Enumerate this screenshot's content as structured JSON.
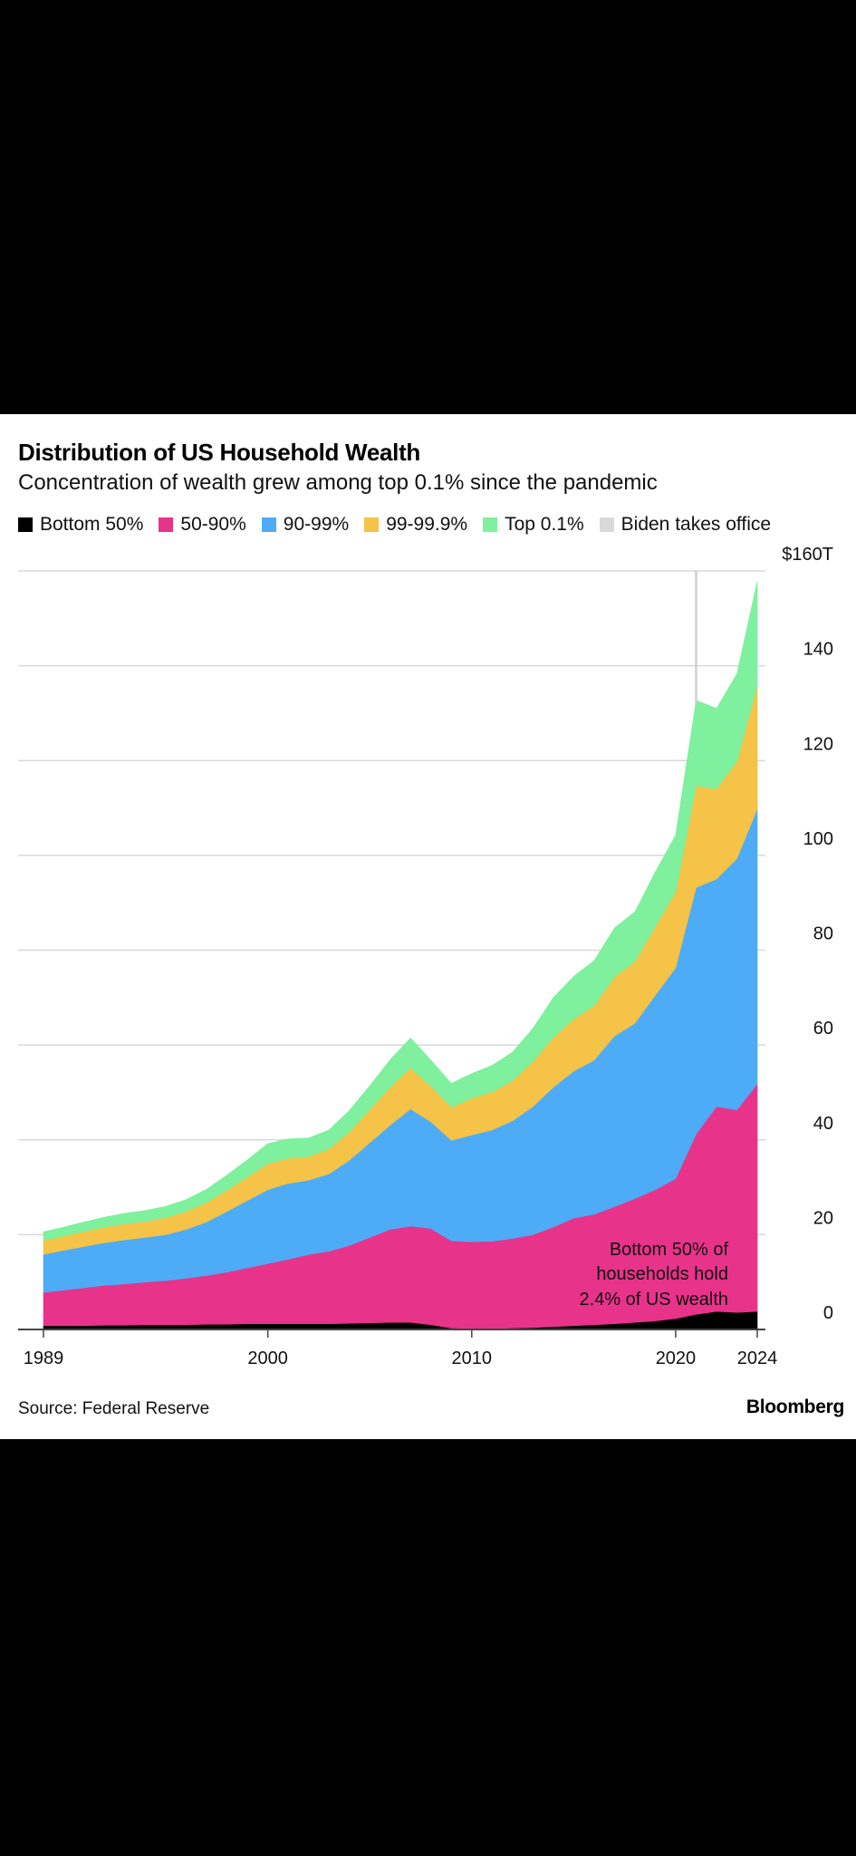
{
  "chart_data": {
    "type": "area",
    "title": "Distribution of US Household Wealth",
    "subtitle": "Concentration of wealth grew among top 0.1% since the pandemic",
    "legend": [
      {
        "name": "Bottom 50%",
        "color": "#000000"
      },
      {
        "name": "50-90%",
        "color": "#e8338a"
      },
      {
        "name": "90-99%",
        "color": "#4dacf5"
      },
      {
        "name": "99-99.9%",
        "color": "#f4c347"
      },
      {
        "name": "Top 0.1%",
        "color": "#7ef09e"
      },
      {
        "name": "Biden takes office",
        "color": "#d9d9d9"
      }
    ],
    "stacked": true,
    "x": [
      1989,
      1990,
      1991,
      1992,
      1993,
      1994,
      1995,
      1996,
      1997,
      1998,
      1999,
      2000,
      2001,
      2002,
      2003,
      2004,
      2005,
      2006,
      2007,
      2008,
      2009,
      2010,
      2011,
      2012,
      2013,
      2014,
      2015,
      2016,
      2017,
      2018,
      2019,
      2020,
      2021,
      2022,
      2023,
      2024
    ],
    "series": [
      {
        "name": "Bottom 50%",
        "color": "#000000",
        "values": [
          0.8,
          0.8,
          0.8,
          0.9,
          0.9,
          1.0,
          1.0,
          1.0,
          1.1,
          1.1,
          1.2,
          1.2,
          1.2,
          1.2,
          1.2,
          1.3,
          1.4,
          1.5,
          1.5,
          1.0,
          0.3,
          0.2,
          0.2,
          0.3,
          0.4,
          0.6,
          0.8,
          1.0,
          1.2,
          1.5,
          1.8,
          2.3,
          3.2,
          3.8,
          3.6,
          3.8
        ]
      },
      {
        "name": "50-90%",
        "color": "#e8338a",
        "values": [
          7.0,
          7.5,
          8.0,
          8.4,
          8.7,
          9.0,
          9.3,
          9.8,
          10.3,
          11.0,
          11.8,
          12.7,
          13.6,
          14.6,
          15.3,
          16.4,
          18.0,
          19.6,
          20.3,
          20.3,
          18.4,
          18.3,
          18.4,
          18.9,
          19.6,
          21.0,
          22.7,
          23.3,
          24.7,
          26.1,
          27.7,
          29.5,
          38.0,
          43.2,
          42.7,
          48.0
        ]
      },
      {
        "name": "90-99%",
        "color": "#4dacf5",
        "values": [
          8.0,
          8.4,
          8.7,
          9.0,
          9.3,
          9.4,
          9.7,
          10.3,
          11.3,
          12.8,
          14.2,
          15.6,
          16.0,
          15.7,
          16.3,
          18.0,
          20.0,
          22.0,
          24.7,
          22.5,
          21.2,
          22.5,
          23.5,
          24.8,
          27.0,
          29.5,
          31.0,
          32.5,
          36.0,
          37.0,
          41.0,
          44.5,
          52.0,
          48.0,
          53.0,
          58.0
        ]
      },
      {
        "name": "99-99.9%",
        "color": "#f4c347",
        "values": [
          3.0,
          3.0,
          3.2,
          3.3,
          3.4,
          3.4,
          3.6,
          3.8,
          4.1,
          4.5,
          5.0,
          5.5,
          5.3,
          5.0,
          5.3,
          6.0,
          7.0,
          8.0,
          8.7,
          7.5,
          7.0,
          7.8,
          8.0,
          8.5,
          9.5,
          10.5,
          11.0,
          11.5,
          12.5,
          13.0,
          14.5,
          16.0,
          21.5,
          19.0,
          20.5,
          26.0
        ]
      },
      {
        "name": "Top 0.1%",
        "color": "#7ef09e",
        "values": [
          1.8,
          1.9,
          2.0,
          2.1,
          2.2,
          2.3,
          2.4,
          2.5,
          2.8,
          3.2,
          3.6,
          4.2,
          4.1,
          3.9,
          4.0,
          4.5,
          5.0,
          5.8,
          6.3,
          5.5,
          5.0,
          5.2,
          5.6,
          6.0,
          7.0,
          8.4,
          9.0,
          9.5,
          10.3,
          10.5,
          11.5,
          12.0,
          18.0,
          17.0,
          18.5,
          22.0
        ]
      }
    ],
    "annotation": {
      "year": 2021,
      "label": "Biden takes office"
    },
    "note_lines": [
      "Bottom 50% of",
      "households hold",
      "2.4% of US wealth"
    ],
    "xlim": [
      1989,
      2024
    ],
    "xticks": [
      1989,
      2000,
      2010,
      2020,
      2024
    ],
    "ylim": [
      0,
      160
    ],
    "yticks": [
      0,
      20,
      40,
      60,
      80,
      100,
      120,
      140,
      160
    ],
    "ytick_labels": [
      "0",
      "20",
      "40",
      "60",
      "80",
      "100",
      "120",
      "140",
      "$160T"
    ],
    "grid": true,
    "legend_position": "top"
  },
  "footer": {
    "source": "Source: Federal Reserve",
    "brand": "Bloomberg"
  }
}
